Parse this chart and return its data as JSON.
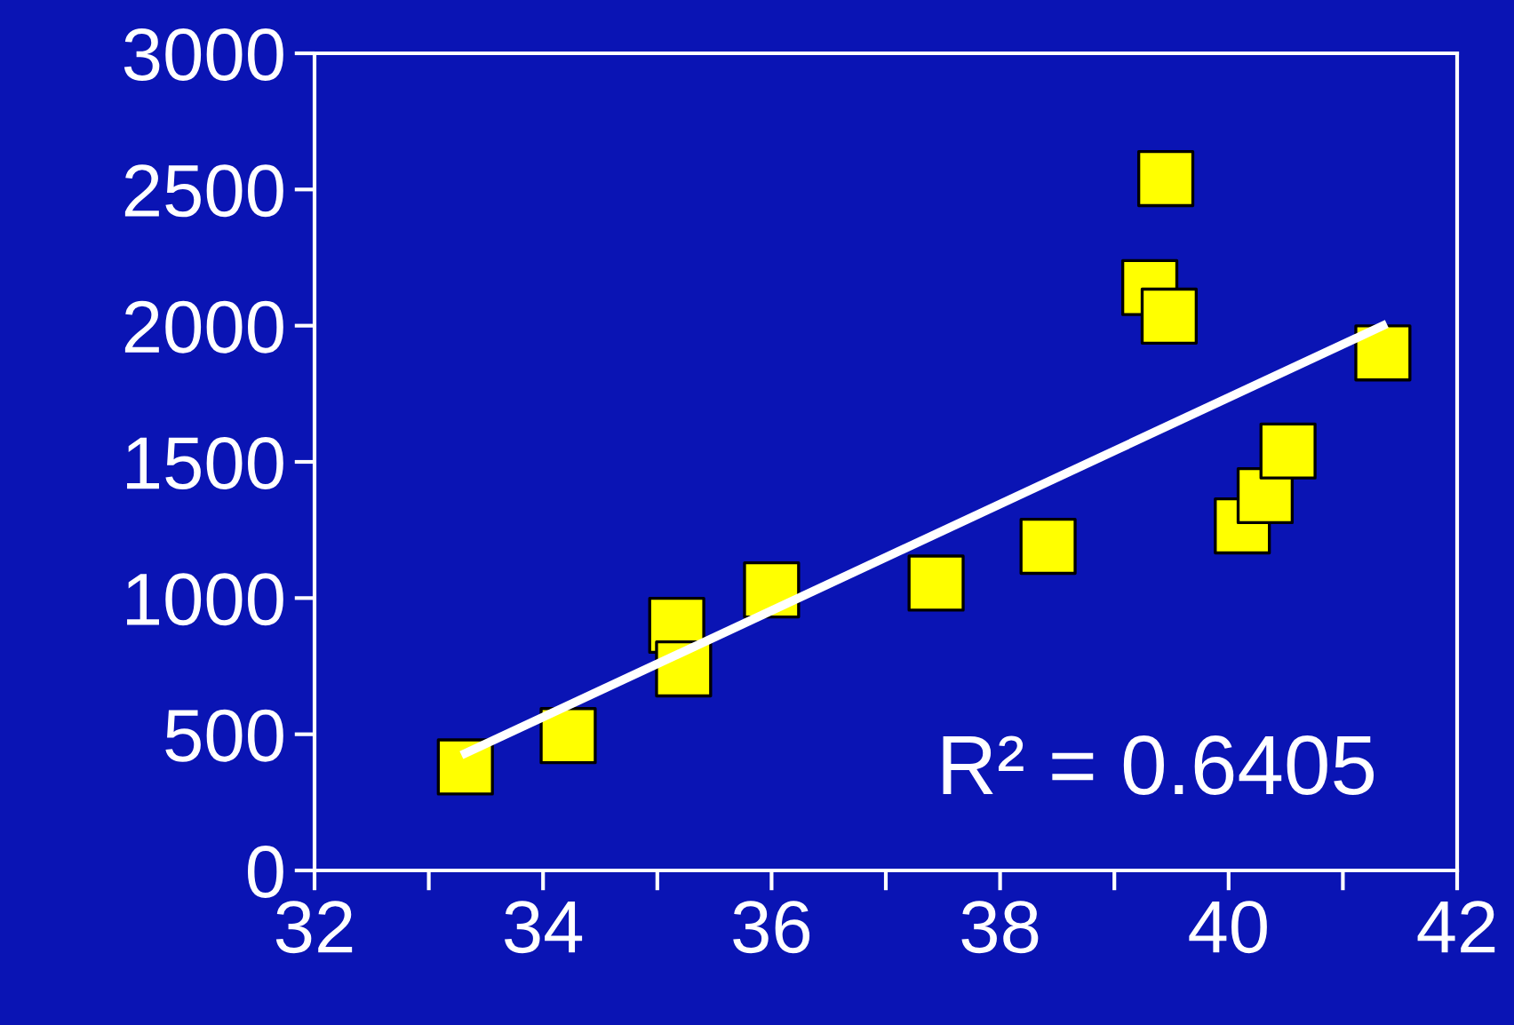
{
  "chart_data": {
    "type": "scatter",
    "xlim": [
      32,
      42
    ],
    "ylim": [
      0,
      3000
    ],
    "xticks": [
      32,
      {
        "value": 33,
        "label": null
      },
      34,
      {
        "value": 35,
        "label": null
      },
      36,
      {
        "value": 37,
        "label": null
      },
      38,
      {
        "value": 39,
        "label": null
      },
      40,
      {
        "value": 41,
        "label": null
      },
      42
    ],
    "yticks": [
      0,
      500,
      1000,
      1500,
      2000,
      2500,
      3000
    ],
    "grid": false,
    "marker": "square",
    "series": [
      {
        "color": "#ffff00",
        "x": [
          33.32,
          34.22,
          35.17,
          35.23,
          36.0,
          37.44,
          38.42,
          39.45,
          39.31,
          39.48,
          40.12,
          40.32,
          40.52,
          41.35
        ],
        "values": [
          380,
          495,
          900,
          740,
          1030,
          1055,
          1190,
          2540,
          2140,
          2035,
          1265,
          1376,
          1540,
          1900
        ]
      },
      {
        "type": "line",
        "color": "#ffffff",
        "x": [
          33.32,
          41.35
        ],
        "values": [
          430,
          2000
        ],
        "marker": "none",
        "line_style": "solid"
      }
    ],
    "annotations": [
      "R² = 0.6405"
    ]
  }
}
